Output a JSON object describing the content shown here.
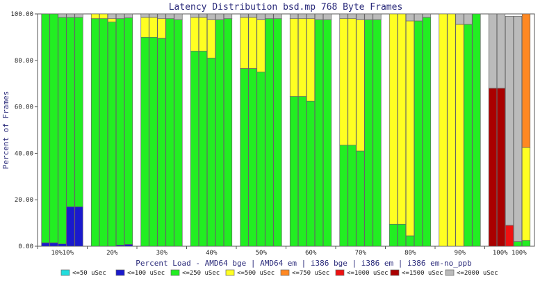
{
  "chart_data": {
    "type": "bar",
    "stacked": true,
    "title": "Latency Distribution bsd.mp 768 Byte Frames",
    "xlabel": "Percent Load - AMD64 bge | AMD64 em | i386 bge | i386 em | i386 em-no_ppb",
    "ylabel": "Percent of Frames",
    "ylim": [
      0,
      100
    ],
    "yticks": [
      "0.00",
      "20.00",
      "40.00",
      "60.00",
      "80.00",
      "100.00"
    ],
    "grid": false,
    "legend_position": "bottom",
    "groups": [
      "10%",
      "20%",
      "30%",
      "40%",
      "50%",
      "60%",
      "70%",
      "80%",
      "90%",
      "100%"
    ],
    "group_tick_labels": [
      "10%10%",
      "20%",
      "30%",
      "40%",
      "50%",
      "60%",
      "70%",
      "80%",
      "90%",
      "100% 100%"
    ],
    "series": [
      {
        "name": "<=50 uSec",
        "color": "#22dddd",
        "values": [
          [
            0,
            0,
            0,
            0,
            0
          ],
          [
            0,
            0,
            0,
            0,
            0
          ],
          [
            0,
            0,
            0,
            0,
            0
          ],
          [
            0,
            0,
            0,
            0,
            0
          ],
          [
            0,
            0,
            0,
            0,
            0
          ],
          [
            0,
            0,
            0,
            0,
            0
          ],
          [
            0,
            0,
            0,
            0,
            0
          ],
          [
            0,
            0,
            0,
            0,
            0
          ],
          [
            0,
            0,
            0,
            0,
            0
          ],
          [
            0,
            0,
            0,
            0,
            0
          ]
        ]
      },
      {
        "name": "<=100 uSec",
        "color": "#1a1acc",
        "values": [
          [
            1.5,
            1.5,
            1,
            17,
            17
          ],
          [
            0,
            0,
            0,
            0.5,
            0.8
          ],
          [
            0,
            0,
            0,
            0,
            0
          ],
          [
            0,
            0,
            0,
            0,
            0
          ],
          [
            0,
            0,
            0,
            0,
            0
          ],
          [
            0,
            0,
            0,
            0,
            0
          ],
          [
            0,
            0,
            0,
            0,
            0
          ],
          [
            0,
            0,
            0,
            0,
            0
          ],
          [
            0,
            0,
            0,
            0,
            0
          ],
          [
            0,
            0,
            0,
            0,
            0
          ]
        ]
      },
      {
        "name": "<=250 uSec",
        "color": "#22ee22",
        "values": [
          [
            98.5,
            98.5,
            97.5,
            81.5,
            81.5
          ],
          [
            98,
            98,
            96.5,
            97.5,
            97.5
          ],
          [
            90,
            90,
            89.5,
            98,
            97.5
          ],
          [
            84,
            84,
            81,
            97.5,
            98
          ],
          [
            76.5,
            76.5,
            75,
            98,
            98
          ],
          [
            64.5,
            64.5,
            62.5,
            97.5,
            97.5
          ],
          [
            43.5,
            43.5,
            41,
            97.5,
            97.5
          ],
          [
            9.5,
            9.5,
            4.5,
            97,
            98.5
          ],
          [
            0,
            0,
            0,
            95.5,
            100
          ],
          [
            0,
            0,
            0,
            2,
            2.5
          ]
        ]
      },
      {
        "name": "<=500 uSec",
        "color": "#ffff22",
        "values": [
          [
            0,
            0,
            0,
            0,
            0
          ],
          [
            2,
            2,
            1.5,
            0,
            0
          ],
          [
            8.5,
            8.5,
            8.5,
            0,
            0
          ],
          [
            14.5,
            14.5,
            16.5,
            0,
            0
          ],
          [
            22,
            22,
            22.5,
            0,
            0
          ],
          [
            33.5,
            33.5,
            35.5,
            0,
            0
          ],
          [
            54.5,
            54.5,
            56.5,
            0,
            0
          ],
          [
            90.5,
            90.5,
            92.5,
            0,
            0
          ],
          [
            100,
            100,
            95.5,
            0,
            0
          ],
          [
            0,
            0,
            0,
            0,
            40
          ]
        ]
      },
      {
        "name": "<=750 uSec",
        "color": "#ff8822",
        "values": [
          [
            0,
            0,
            0,
            0,
            0
          ],
          [
            0,
            0,
            0,
            0,
            0
          ],
          [
            0,
            0,
            0,
            0,
            0
          ],
          [
            0,
            0,
            0,
            0,
            0
          ],
          [
            0,
            0,
            0,
            0,
            0
          ],
          [
            0,
            0,
            0,
            0,
            0
          ],
          [
            0,
            0,
            0,
            0,
            0
          ],
          [
            0,
            0,
            0,
            0,
            0
          ],
          [
            0,
            0,
            0,
            0,
            0
          ],
          [
            0,
            0,
            0,
            0,
            57.5
          ]
        ]
      },
      {
        "name": "<=1000 uSec",
        "color": "#ee1111",
        "values": [
          [
            0,
            0,
            0,
            0,
            0
          ],
          [
            0,
            0,
            0,
            0,
            0
          ],
          [
            0,
            0,
            0,
            0,
            0
          ],
          [
            0,
            0,
            0,
            0,
            0
          ],
          [
            0,
            0,
            0,
            0,
            0
          ],
          [
            0,
            0,
            0,
            0,
            0
          ],
          [
            0,
            0,
            0,
            0,
            0
          ],
          [
            0,
            0,
            0,
            0,
            0
          ],
          [
            0,
            0,
            0,
            0,
            0
          ],
          [
            0,
            0,
            9,
            0,
            0
          ]
        ]
      },
      {
        "name": "<=1500 uSec",
        "color": "#aa0000",
        "values": [
          [
            0,
            0,
            0,
            0,
            0
          ],
          [
            0,
            0,
            0,
            0,
            0
          ],
          [
            0,
            0,
            0,
            0,
            0
          ],
          [
            0,
            0,
            0,
            0,
            0
          ],
          [
            0,
            0,
            0,
            0,
            0
          ],
          [
            0,
            0,
            0,
            0,
            0
          ],
          [
            0,
            0,
            0,
            0,
            0
          ],
          [
            0,
            0,
            0,
            0,
            0
          ],
          [
            0,
            0,
            0,
            0,
            0
          ],
          [
            68,
            68,
            0,
            0,
            0
          ]
        ]
      },
      {
        "name": "<=2000 uSec",
        "color": "#bbbbbb",
        "values": [
          [
            0,
            0,
            1.5,
            1.5,
            1.5
          ],
          [
            0,
            0,
            2,
            2,
            1.7
          ],
          [
            1.5,
            1.5,
            2,
            2,
            2.5
          ],
          [
            1.5,
            1.5,
            2.5,
            2.5,
            2
          ],
          [
            1.5,
            1.5,
            2.5,
            2,
            2
          ],
          [
            2,
            2,
            2,
            2.5,
            2.5
          ],
          [
            2,
            2,
            2.5,
            2.5,
            2.5
          ],
          [
            0,
            0,
            3,
            3,
            1.5
          ],
          [
            0,
            0,
            4.5,
            4.5,
            0
          ],
          [
            32,
            32,
            90,
            97,
            0
          ]
        ]
      }
    ]
  }
}
